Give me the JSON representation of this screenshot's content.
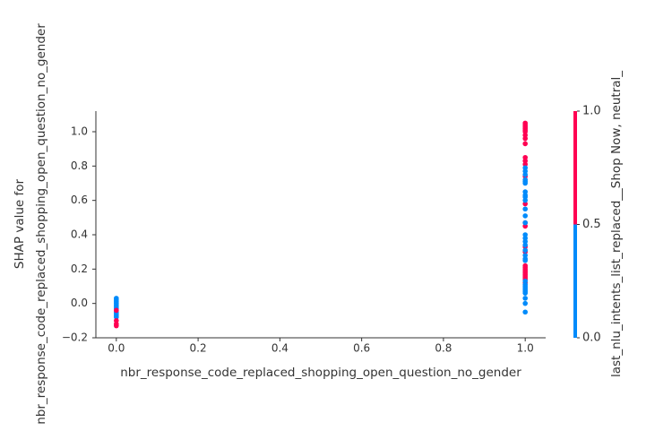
{
  "chart_data": {
    "type": "scatter",
    "xlabel": "nbr_response_code_replaced_shopping_open_question_no_gender",
    "ylabel": [
      "SHAP value for",
      "nbr_response_code_replaced_shopping_open_question_no_gender"
    ],
    "x": [
      0,
      0,
      0,
      0,
      0,
      0,
      0,
      0,
      0,
      0,
      0,
      0,
      0,
      0,
      0,
      1,
      1,
      1,
      1,
      1,
      1,
      1,
      1,
      1,
      1,
      1,
      1,
      1,
      1,
      1,
      1,
      1,
      1,
      1,
      1,
      1,
      1,
      1,
      1,
      1,
      1,
      1,
      1,
      1,
      1,
      1,
      1,
      1,
      1,
      1,
      1,
      1,
      1,
      1,
      1,
      1,
      1,
      1,
      1,
      1,
      1,
      1,
      1,
      1,
      1,
      1,
      1,
      1,
      1,
      1,
      1,
      1,
      1,
      1
    ],
    "y": [
      0.03,
      0.02,
      0.01,
      0,
      -0.01,
      -0.02,
      -0.03,
      -0.05,
      -0.06,
      -0.07,
      -0.08,
      -0.04,
      -0.1,
      -0.12,
      -0.13,
      1.05,
      1.04,
      1.03,
      1.02,
      1.01,
      1,
      0.98,
      0.96,
      0.93,
      0.85,
      0.83,
      0.81,
      0.74,
      0.58,
      0.47,
      0.45,
      0.33,
      0.3,
      0.22,
      0.21,
      0.2,
      0.19,
      0.18,
      0.17,
      0.16,
      0.15,
      0.14,
      0.12,
      0.79,
      0.77,
      0.75,
      0.72,
      0.71,
      0.7,
      0.65,
      0.63,
      0.62,
      0.6,
      0.55,
      0.51,
      0.47,
      0.4,
      0.38,
      0.36,
      0.34,
      0.31,
      0.28,
      0.26,
      0.25,
      0.13,
      0.11,
      0.1,
      0.09,
      0.08,
      0.07,
      0.06,
      0.03,
      0,
      -0.05
    ],
    "color_values": [
      0,
      0,
      0,
      0,
      0,
      0,
      0,
      0,
      0,
      0,
      0,
      1,
      1,
      1,
      1,
      1,
      1,
      1,
      1,
      1,
      1,
      1,
      1,
      1,
      1,
      1,
      1,
      1,
      1,
      1,
      1,
      1,
      1,
      1,
      1,
      1,
      1,
      1,
      1,
      1,
      1,
      1,
      1,
      0,
      0,
      0,
      0,
      0,
      0,
      0,
      0,
      0,
      0,
      0,
      0,
      0,
      0,
      0,
      0,
      0,
      0,
      0,
      0,
      0,
      0,
      0,
      0,
      0,
      0,
      0,
      0,
      0,
      0,
      0
    ],
    "xlim": [
      -0.05,
      1.05
    ],
    "ylim": [
      -0.2,
      1.12
    ],
    "xticks": [
      {
        "value": 0,
        "label": "0.0"
      },
      0.2,
      0.4,
      0.6,
      0.8,
      {
        "value": 1,
        "label": "1.0"
      }
    ],
    "yticks": [
      {
        "value": -0.2,
        "label": "−0.2"
      },
      {
        "value": 0,
        "label": "0.0"
      },
      0.2,
      0.4,
      0.6,
      0.8,
      {
        "value": 1,
        "label": "1.0"
      }
    ],
    "colorbar": {
      "label": "last_nlu_intents_list_replaced__Shop Now, neutral_",
      "lim": [
        0,
        1
      ],
      "ticks": [
        {
          "value": 0,
          "label": "0.0"
        },
        0.5,
        {
          "value": 1,
          "label": "1.0"
        }
      ],
      "colors": [
        "#008bfb",
        "#ff0052"
      ]
    }
  }
}
